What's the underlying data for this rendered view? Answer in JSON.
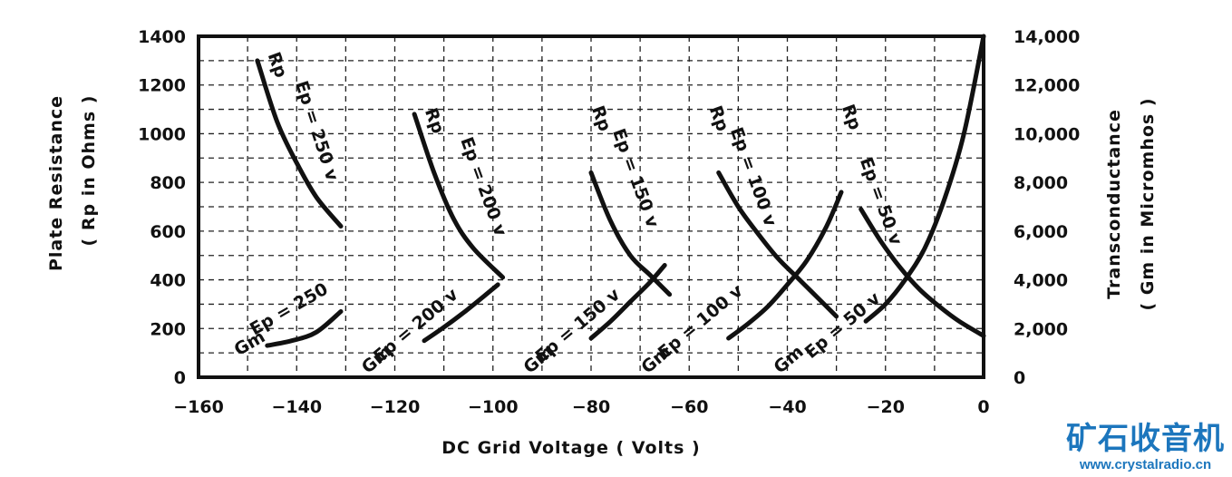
{
  "chart_data": {
    "type": "line",
    "xlabel": "DC Grid Voltage ( Volts )",
    "ylabel_left": [
      "Plate Resistance",
      "( Rp in Ohms )"
    ],
    "ylabel_right": [
      "Transconductance",
      "( Gm in Micromhos )"
    ],
    "xlim": [
      -160,
      0
    ],
    "ylim_left": [
      0,
      1400
    ],
    "ylim_right": [
      0,
      14000
    ],
    "x_ticks": [
      -160,
      -140,
      -120,
      -100,
      -80,
      -60,
      -40,
      -20,
      0
    ],
    "x_tick_labels": [
      "−160",
      "−140",
      "−120",
      "−100",
      "−80",
      "−60",
      "−40",
      "−20",
      "0"
    ],
    "y_left_ticks": [
      0,
      200,
      400,
      600,
      800,
      1000,
      1200,
      1400
    ],
    "y_left_tick_labels": [
      "0",
      "200",
      "400",
      "600",
      "800",
      "1000",
      "1200",
      "1400"
    ],
    "y_right_ticks": [
      0,
      2000,
      4000,
      6000,
      8000,
      10000,
      12000,
      14000
    ],
    "y_right_tick_labels": [
      "0",
      "2,000",
      "4,000",
      "6,000",
      "8,000",
      "10,000",
      "12,000",
      "14,000"
    ],
    "grid": true,
    "series": [
      {
        "name": "Rp Ep=250 v",
        "kind": "Rp",
        "axis": "left",
        "x": [
          -148,
          -144,
          -140,
          -136,
          -131
        ],
        "y": [
          1300,
          1050,
          880,
          740,
          620
        ]
      },
      {
        "name": "Rp Ep=200 v",
        "kind": "Rp",
        "axis": "left",
        "x": [
          -116,
          -112,
          -108,
          -104,
          -98
        ],
        "y": [
          1080,
          840,
          650,
          530,
          410
        ]
      },
      {
        "name": "Rp Ep=150 v",
        "kind": "Rp",
        "axis": "left",
        "x": [
          -80,
          -76,
          -72,
          -68,
          -64
        ],
        "y": [
          840,
          640,
          500,
          420,
          340
        ]
      },
      {
        "name": "Rp Ep=100 v",
        "kind": "Rp",
        "axis": "left",
        "x": [
          -54,
          -50,
          -46,
          -42,
          -38,
          -34,
          -30
        ],
        "y": [
          840,
          700,
          590,
          490,
          410,
          330,
          250
        ]
      },
      {
        "name": "Rp Ep=50 v",
        "kind": "Rp",
        "axis": "left",
        "x": [
          -25,
          -21,
          -17,
          -13,
          -9,
          -5,
          0
        ],
        "y": [
          690,
          560,
          450,
          360,
          290,
          230,
          170
        ]
      },
      {
        "name": "Gm Ep=250",
        "kind": "Gm",
        "axis": "right",
        "x": [
          -146,
          -141,
          -136,
          -131
        ],
        "y": [
          1300,
          1500,
          1850,
          2700
        ]
      },
      {
        "name": "Gm Ep=200 v",
        "kind": "Gm",
        "axis": "right",
        "x": [
          -114,
          -110,
          -106,
          -102,
          -99
        ],
        "y": [
          1500,
          2050,
          2650,
          3300,
          3800
        ]
      },
      {
        "name": "Gm Ep=150 v",
        "kind": "Gm",
        "axis": "right",
        "x": [
          -80,
          -76,
          -72,
          -68,
          -65
        ],
        "y": [
          1600,
          2300,
          3100,
          3900,
          4600
        ]
      },
      {
        "name": "Gm Ep=100 v",
        "kind": "Gm",
        "axis": "right",
        "x": [
          -52,
          -48,
          -44,
          -40,
          -36,
          -32,
          -29
        ],
        "y": [
          1600,
          2200,
          2900,
          3800,
          4800,
          6200,
          7600
        ]
      },
      {
        "name": "Gm Ep=50 v",
        "kind": "Gm",
        "axis": "right",
        "x": [
          -24,
          -20,
          -16,
          -12,
          -8,
          -4,
          0
        ],
        "y": [
          2300,
          3000,
          4000,
          5300,
          7300,
          10000,
          14000
        ]
      }
    ],
    "annotations": [
      {
        "text": "Rp",
        "x": -145,
        "y": 1275,
        "angle": 70
      },
      {
        "text": "Ep = 250 v",
        "x": -137,
        "y": 1005,
        "angle": 72
      },
      {
        "text": "Rp",
        "x": -113,
        "y": 1045,
        "angle": 70
      },
      {
        "text": "Ep = 200 v",
        "x": -103,
        "y": 775,
        "angle": 70
      },
      {
        "text": "Rp",
        "x": -79,
        "y": 1055,
        "angle": 70
      },
      {
        "text": "Ep = 150 v",
        "x": -72,
        "y": 810,
        "angle": 70
      },
      {
        "text": "Rp",
        "x": -55,
        "y": 1055,
        "angle": 70
      },
      {
        "text": "Ep = 100 v",
        "x": -48,
        "y": 815,
        "angle": 70
      },
      {
        "text": "Rp",
        "x": -28,
        "y": 1060,
        "angle": 70
      },
      {
        "text": "Ep = 50 v",
        "x": -22,
        "y": 715,
        "angle": 70
      },
      {
        "text": "Gm",
        "x": -149,
        "y": 120,
        "angle": -30
      },
      {
        "text": "Ep = 250",
        "x": -141,
        "y": 260,
        "angle": -30
      },
      {
        "text": "Gm",
        "x": -123,
        "y": 55,
        "angle": -40
      },
      {
        "text": "Ep = 200 v",
        "x": -115,
        "y": 195,
        "angle": -40
      },
      {
        "text": "Gm",
        "x": -90,
        "y": 55,
        "angle": -40
      },
      {
        "text": "Ep = 150 v",
        "x": -82,
        "y": 195,
        "angle": -40
      },
      {
        "text": "Gm",
        "x": -66,
        "y": 55,
        "angle": -40
      },
      {
        "text": "Ep = 100 v",
        "x": -57,
        "y": 210,
        "angle": -40
      },
      {
        "text": "Gm",
        "x": -39,
        "y": 55,
        "angle": -40
      },
      {
        "text": "Ep = 50 v",
        "x": -28,
        "y": 195,
        "angle": -40
      }
    ]
  },
  "watermark": {
    "title": "矿石收音机",
    "url": "www.crystalradio.cn"
  }
}
